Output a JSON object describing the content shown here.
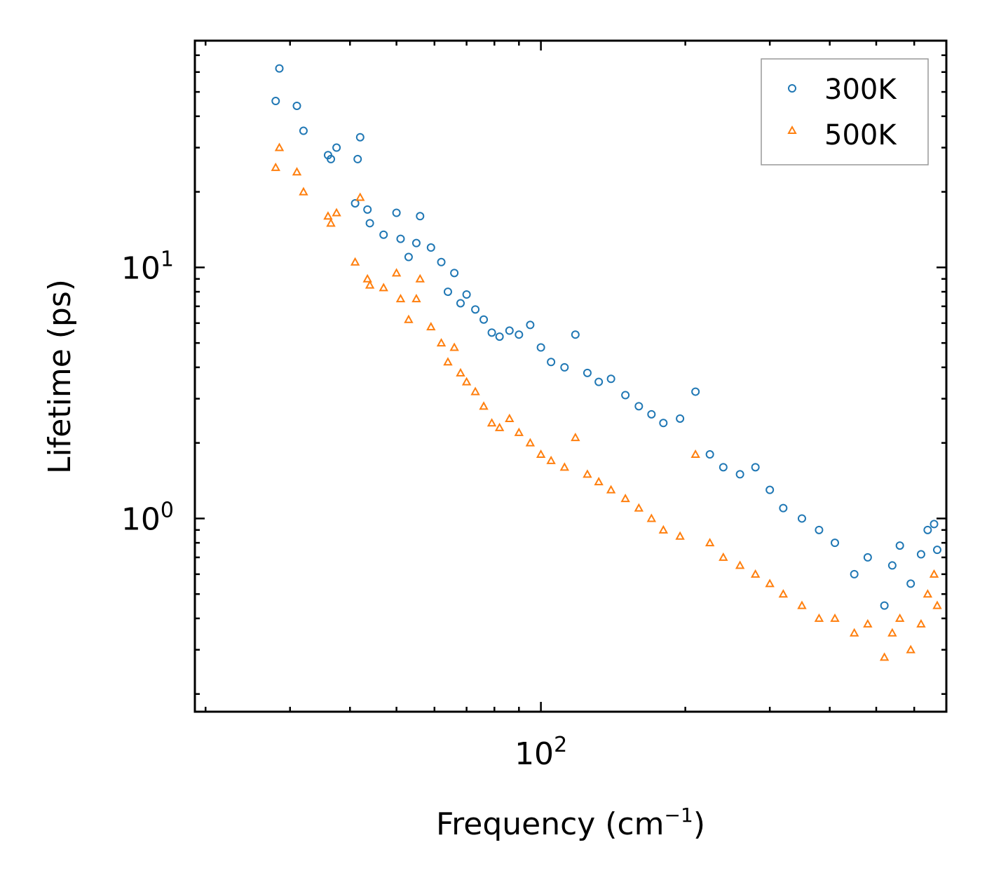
{
  "chart_data": {
    "type": "scatter",
    "title": "",
    "xlabel": "Frequency (cm",
    "xlabel_sup": "−1",
    "xlabel_suffix": ")",
    "ylabel": "Lifetime (ps)",
    "xscale": "log",
    "yscale": "log",
    "xlim": [
      19,
      700
    ],
    "ylim": [
      0.17,
      80
    ],
    "x_major_ticks": [
      {
        "value": 100,
        "base": "10",
        "exp": "2"
      }
    ],
    "y_major_ticks": [
      {
        "value": 1,
        "base": "10",
        "exp": "0"
      },
      {
        "value": 10,
        "base": "10",
        "exp": "1"
      }
    ],
    "legend_position": "top-right",
    "series": [
      {
        "name": "300K",
        "marker": "circle",
        "color": "#1f77b4",
        "points": [
          [
            28,
            46
          ],
          [
            28.5,
            62
          ],
          [
            31,
            44
          ],
          [
            32,
            35
          ],
          [
            36,
            28
          ],
          [
            36.5,
            27
          ],
          [
            37.5,
            30
          ],
          [
            41,
            18
          ],
          [
            41.5,
            27
          ],
          [
            42,
            33
          ],
          [
            43.5,
            17
          ],
          [
            44,
            15
          ],
          [
            47,
            13.5
          ],
          [
            50,
            16.5
          ],
          [
            51,
            13
          ],
          [
            53,
            11
          ],
          [
            55,
            12.5
          ],
          [
            56,
            16
          ],
          [
            59,
            12
          ],
          [
            62,
            10.5
          ],
          [
            64,
            8
          ],
          [
            66,
            9.5
          ],
          [
            68,
            7.2
          ],
          [
            70,
            7.8
          ],
          [
            73,
            6.8
          ],
          [
            76,
            6.2
          ],
          [
            79,
            5.5
          ],
          [
            82,
            5.3
          ],
          [
            86,
            5.6
          ],
          [
            90,
            5.4
          ],
          [
            95,
            5.9
          ],
          [
            100,
            4.8
          ],
          [
            105,
            4.2
          ],
          [
            112,
            4.0
          ],
          [
            118,
            5.4
          ],
          [
            125,
            3.8
          ],
          [
            132,
            3.5
          ],
          [
            140,
            3.6
          ],
          [
            150,
            3.1
          ],
          [
            160,
            2.8
          ],
          [
            170,
            2.6
          ],
          [
            180,
            2.4
          ],
          [
            195,
            2.5
          ],
          [
            210,
            3.2
          ],
          [
            225,
            1.8
          ],
          [
            240,
            1.6
          ],
          [
            260,
            1.5
          ],
          [
            280,
            1.6
          ],
          [
            300,
            1.3
          ],
          [
            320,
            1.1
          ],
          [
            350,
            1.0
          ],
          [
            380,
            0.9
          ],
          [
            410,
            0.8
          ],
          [
            450,
            0.6
          ],
          [
            480,
            0.7
          ],
          [
            520,
            0.45
          ],
          [
            540,
            0.65
          ],
          [
            560,
            0.78
          ],
          [
            590,
            0.55
          ],
          [
            620,
            0.72
          ],
          [
            640,
            0.9
          ],
          [
            660,
            0.95
          ],
          [
            670,
            0.75
          ]
        ]
      },
      {
        "name": "500K",
        "marker": "triangle",
        "color": "#ff7f0e",
        "points": [
          [
            28,
            25
          ],
          [
            28.5,
            30
          ],
          [
            31,
            24
          ],
          [
            32,
            20
          ],
          [
            36,
            16
          ],
          [
            36.5,
            15
          ],
          [
            37.5,
            16.5
          ],
          [
            41,
            10.5
          ],
          [
            42,
            19
          ],
          [
            43.5,
            9
          ],
          [
            44,
            8.5
          ],
          [
            47,
            8.3
          ],
          [
            50,
            9.5
          ],
          [
            51,
            7.5
          ],
          [
            53,
            6.2
          ],
          [
            55,
            7.5
          ],
          [
            56,
            9.0
          ],
          [
            59,
            5.8
          ],
          [
            62,
            5.0
          ],
          [
            64,
            4.2
          ],
          [
            66,
            4.8
          ],
          [
            68,
            3.8
          ],
          [
            70,
            3.5
          ],
          [
            73,
            3.2
          ],
          [
            76,
            2.8
          ],
          [
            79,
            2.4
          ],
          [
            82,
            2.3
          ],
          [
            86,
            2.5
          ],
          [
            90,
            2.2
          ],
          [
            95,
            2.0
          ],
          [
            100,
            1.8
          ],
          [
            105,
            1.7
          ],
          [
            112,
            1.6
          ],
          [
            118,
            2.1
          ],
          [
            125,
            1.5
          ],
          [
            132,
            1.4
          ],
          [
            140,
            1.3
          ],
          [
            150,
            1.2
          ],
          [
            160,
            1.1
          ],
          [
            170,
            1.0
          ],
          [
            180,
            0.9
          ],
          [
            195,
            0.85
          ],
          [
            210,
            1.8
          ],
          [
            225,
            0.8
          ],
          [
            240,
            0.7
          ],
          [
            260,
            0.65
          ],
          [
            280,
            0.6
          ],
          [
            300,
            0.55
          ],
          [
            320,
            0.5
          ],
          [
            350,
            0.45
          ],
          [
            380,
            0.4
          ],
          [
            410,
            0.4
          ],
          [
            450,
            0.35
          ],
          [
            480,
            0.38
          ],
          [
            520,
            0.28
          ],
          [
            540,
            0.35
          ],
          [
            560,
            0.4
          ],
          [
            590,
            0.3
          ],
          [
            620,
            0.38
          ],
          [
            640,
            0.5
          ],
          [
            660,
            0.6
          ],
          [
            670,
            0.45
          ]
        ]
      }
    ]
  }
}
